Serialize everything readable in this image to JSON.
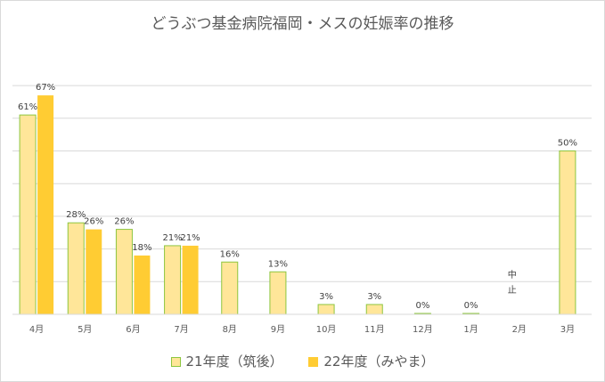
{
  "chart_data": {
    "type": "bar",
    "title": "どうぶつ基金病院福岡・メスの妊娠率の推移",
    "categories": [
      "4月",
      "5月",
      "6月",
      "7月",
      "8月",
      "9月",
      "10月",
      "11月",
      "12月",
      "1月",
      "2月",
      "3月"
    ],
    "ylim": [
      0,
      0.7
    ],
    "grid": true,
    "legend_position": "bottom",
    "series": [
      {
        "name": "21年度（筑後）",
        "color": "#ffe699",
        "values": [
          0.61,
          0.28,
          0.26,
          0.21,
          0.16,
          0.13,
          0.03,
          0.03,
          0.0,
          0.0,
          null,
          0.5
        ],
        "labels": [
          "61%",
          "28%",
          "26%",
          "21%",
          "16%",
          "13%",
          "3%",
          "3%",
          "0%",
          "0%",
          "",
          "50%"
        ]
      },
      {
        "name": "22年度（みやま）",
        "color": "#ffcc33",
        "values": [
          0.67,
          0.26,
          0.18,
          0.21,
          null,
          null,
          null,
          null,
          null,
          null,
          null,
          null
        ],
        "labels": [
          "67%",
          "26%",
          "18%",
          "21%",
          "",
          "",
          "",
          "",
          "",
          "",
          "",
          ""
        ]
      }
    ],
    "annotations": [
      {
        "category": "2月",
        "text": "中止"
      }
    ]
  }
}
